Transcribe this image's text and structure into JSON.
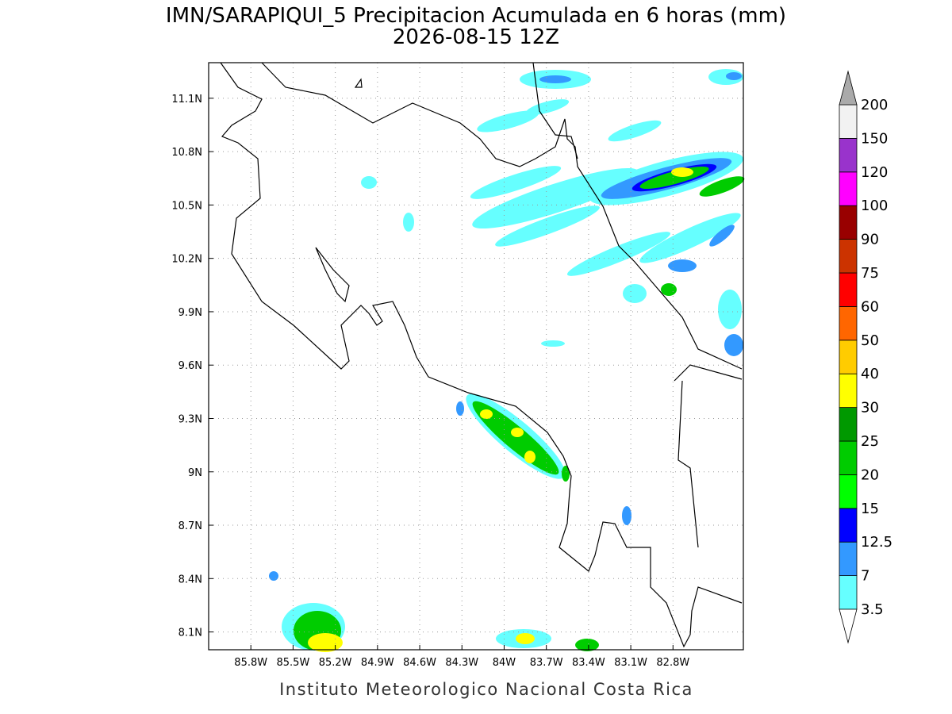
{
  "title": "IMN/SARAPIQUI_5 Precipitacion Acumulada en 6 horas (mm)",
  "subtitle": "2026-08-15 12Z",
  "map": {
    "xlim": [
      -86.1,
      -82.3
    ],
    "ylim": [
      8.0,
      11.3
    ],
    "xticks": [
      {
        "value": -85.8,
        "label": "85.8W"
      },
      {
        "value": -85.5,
        "label": "85.5W"
      },
      {
        "value": -85.2,
        "label": "85.2W"
      },
      {
        "value": -84.9,
        "label": "84.9W"
      },
      {
        "value": -84.6,
        "label": "84.6W"
      },
      {
        "value": -84.3,
        "label": "84.3W"
      },
      {
        "value": -84.0,
        "label": "84W"
      },
      {
        "value": -83.7,
        "label": "83.7W"
      },
      {
        "value": -83.4,
        "label": "83.4W"
      },
      {
        "value": -83.1,
        "label": "83.1W"
      },
      {
        "value": -82.8,
        "label": "82.8W"
      }
    ],
    "yticks": [
      {
        "value": 8.1,
        "label": "8.1N"
      },
      {
        "value": 8.4,
        "label": "8.4N"
      },
      {
        "value": 8.7,
        "label": "8.7N"
      },
      {
        "value": 9.0,
        "label": "9N"
      },
      {
        "value": 9.3,
        "label": "9.3N"
      },
      {
        "value": 9.6,
        "label": "9.6N"
      },
      {
        "value": 9.9,
        "label": "9.9N"
      },
      {
        "value": 10.2,
        "label": "10.2N"
      },
      {
        "value": 10.5,
        "label": "10.5N"
      },
      {
        "value": 10.8,
        "label": "10.8N"
      },
      {
        "value": 11.1,
        "label": "11.1N"
      }
    ],
    "grid": true
  },
  "colorbar": {
    "levels": [
      3.5,
      7,
      12.5,
      15,
      20,
      25,
      30,
      40,
      50,
      60,
      75,
      90,
      100,
      120,
      150,
      200
    ],
    "colors": [
      "#66ffff",
      "#3399ff",
      "#0000ff",
      "#00ff00",
      "#00cc00",
      "#009900",
      "#ffff00",
      "#ffcc00",
      "#ff6600",
      "#ff0000",
      "#cc3300",
      "#990000",
      "#ff00ff",
      "#9933cc",
      "#f2f2f2"
    ],
    "under_color": "#ffffff",
    "over_color": "#aaaaaa"
  },
  "footer": "Instituto Meteorologico Nacional Costa Rica"
}
